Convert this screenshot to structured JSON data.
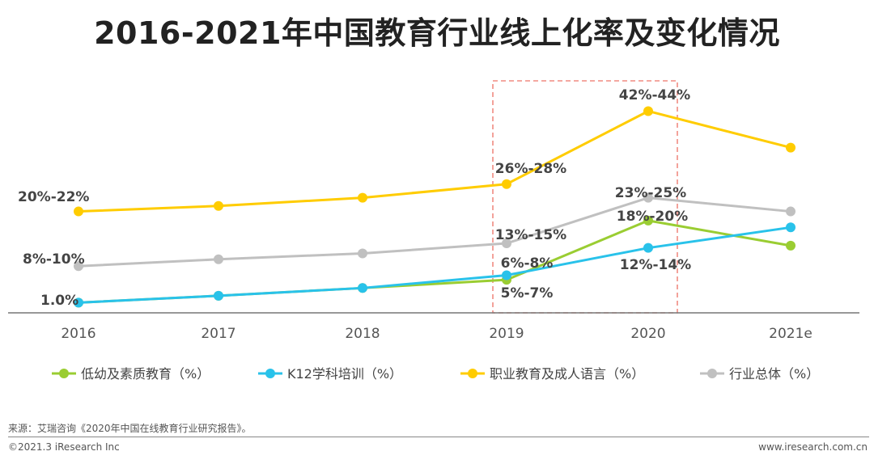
{
  "chart_data": {
    "type": "line",
    "title": "2016-2021年中国教育行业线上化率及变化情况",
    "categories": [
      "2016",
      "2017",
      "2018",
      "2019",
      "2020",
      "2021e"
    ],
    "ylim": [
      0,
      50
    ],
    "series": [
      {
        "name": "低幼及素质教育（%）",
        "color": "#9acd32",
        "values": [
          1.0,
          2.5,
          4.2,
          6.0,
          19.0,
          13.5
        ]
      },
      {
        "name": "K12学科培训（%）",
        "color": "#29c2ea",
        "values": [
          1.0,
          2.5,
          4.2,
          7.0,
          13.0,
          17.5
        ]
      },
      {
        "name": "职业教育及成人语言（%）",
        "color": "#ffcc00",
        "values": [
          21.0,
          22.2,
          24.0,
          27.0,
          43.0,
          35.0
        ]
      },
      {
        "name": "行业总体（%）",
        "color": "#c0c0c0",
        "values": [
          9.0,
          10.5,
          11.8,
          14.0,
          24.0,
          21.0
        ]
      }
    ],
    "annotations": [
      {
        "text": "20%-22%"
      },
      {
        "text": "8%-10%"
      },
      {
        "text": "1.0%"
      },
      {
        "text": "26%-28%"
      },
      {
        "text": "13%-15%"
      },
      {
        "text": "6%-8%"
      },
      {
        "text": "5%-7%"
      },
      {
        "text": "42%-44%"
      },
      {
        "text": "23%-25%"
      },
      {
        "text": "18%-20%"
      },
      {
        "text": "12%-14%"
      }
    ],
    "highlight": "2019-2020"
  },
  "footer": {
    "source": "来源：艾瑞咨询《2020年中国在线教育行业研究报告》。",
    "copyright": "©2021.3 iResearch Inc",
    "website": "www.iresearch.com.cn"
  }
}
